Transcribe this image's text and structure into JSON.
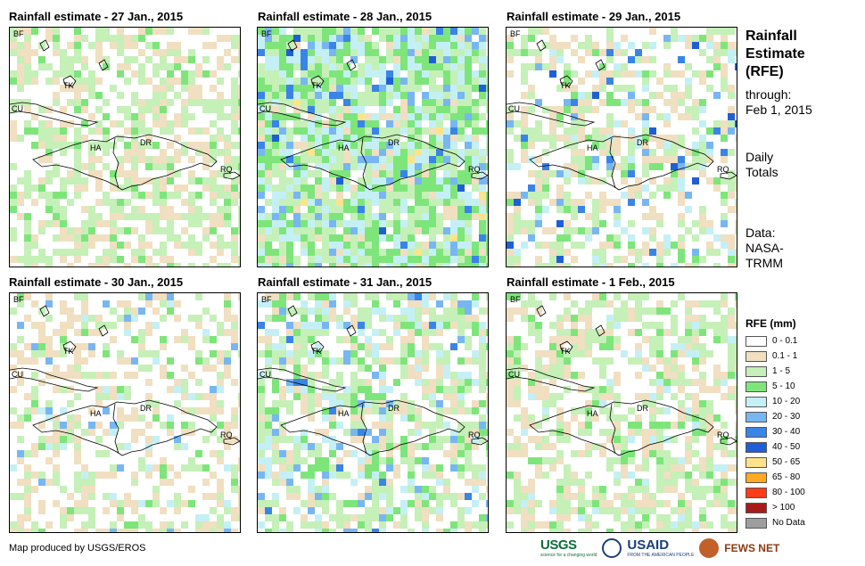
{
  "panels": [
    {
      "title": "Rainfall estimate - 27 Jan., 2015"
    },
    {
      "title": "Rainfall estimate - 28 Jan., 2015"
    },
    {
      "title": "Rainfall estimate - 29 Jan., 2015"
    },
    {
      "title": "Rainfall estimate - 30 Jan., 2015"
    },
    {
      "title": "Rainfall estimate - 31 Jan., 2015"
    },
    {
      "title": "Rainfall estimate - 1 Feb., 2015"
    }
  ],
  "map_labels": {
    "bf": "BF",
    "tk": "TK",
    "cu": "CU",
    "ha": "HA",
    "dr": "DR",
    "rq": "RQ"
  },
  "side": {
    "title_1": "Rainfall",
    "title_2": "Estimate",
    "title_3": "(RFE)",
    "through_1": "through:",
    "through_2": "Feb 1, 2015",
    "daily_1": "Daily",
    "daily_2": "Totals",
    "data_1": "Data:",
    "data_2": "NASA-",
    "data_3": "TRMM"
  },
  "legend": {
    "title": "RFE (mm)",
    "items": [
      {
        "label": "0 - 0.1",
        "color": "#ffffff"
      },
      {
        "label": "0.1 - 1",
        "color": "#f0dfc0"
      },
      {
        "label": "1 - 5",
        "color": "#c5f0b8"
      },
      {
        "label": "5 - 10",
        "color": "#7ee57b"
      },
      {
        "label": "10 - 20",
        "color": "#c4f0f5"
      },
      {
        "label": "20 - 30",
        "color": "#78b6f2"
      },
      {
        "label": "30 - 40",
        "color": "#3a84e6"
      },
      {
        "label": "40 - 50",
        "color": "#1f5fd6"
      },
      {
        "label": "50 - 65",
        "color": "#ffe38a"
      },
      {
        "label": "65 - 80",
        "color": "#ffaa22"
      },
      {
        "label": "80 - 100",
        "color": "#ff3b1a"
      },
      {
        "label": "> 100",
        "color": "#a81b1b"
      },
      {
        "label": "No Data",
        "color": "#9e9e9e"
      }
    ]
  },
  "credit": "Map produced by USGS/EROS",
  "logos": {
    "usgs": "USGS",
    "usgs_tagline": "science for a changing world",
    "usaid": "USAID",
    "usaid_tagline": "FROM THE AMERICAN PEOPLE",
    "fews": "FEWS NET"
  }
}
